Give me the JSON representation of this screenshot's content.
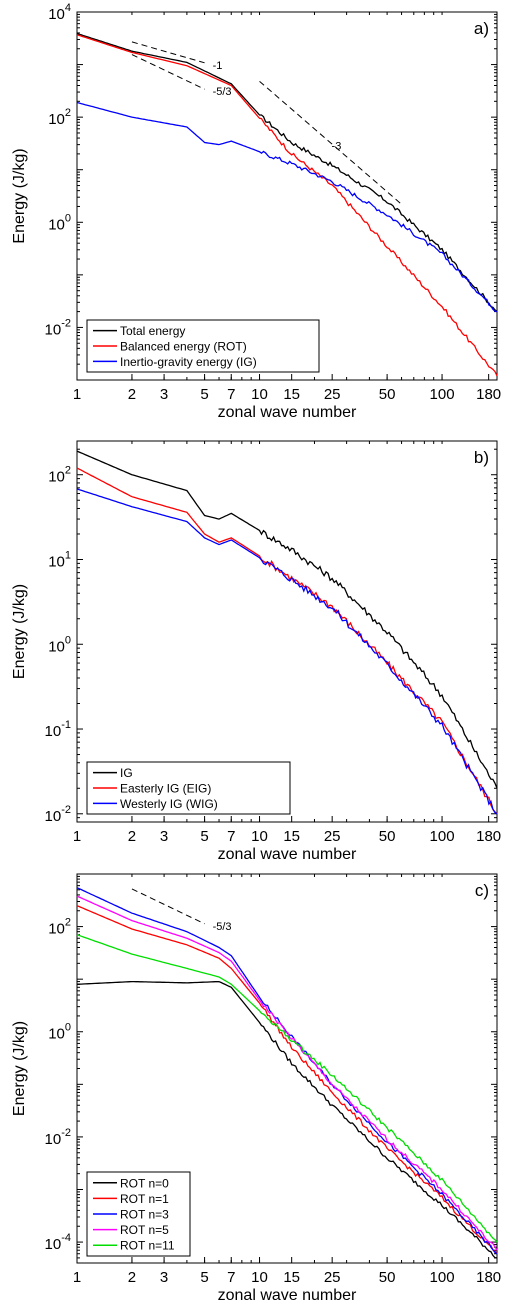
{
  "chart_data": [
    {
      "type": "line",
      "panel_label": "a)",
      "xlabel": "zonal wave number",
      "ylabel": "Energy (J/kg)",
      "xscale": "log",
      "yscale": "log",
      "xlim": [
        1,
        200
      ],
      "ylim": [
        0.001,
        10000
      ],
      "xticks": [
        1,
        2,
        3,
        5,
        7,
        10,
        15,
        25,
        50,
        100,
        180
      ],
      "xtick_labels": [
        "1",
        "2",
        "3",
        "5",
        "7",
        "10",
        "15",
        "25",
        "50",
        "100",
        "180"
      ],
      "ytick_labels": [
        {
          "value": 10000,
          "base": "10",
          "exp": "4"
        },
        {
          "value": 100,
          "base": "10",
          "exp": "2"
        },
        {
          "value": 1,
          "base": "10",
          "exp": "0"
        },
        {
          "value": 0.01,
          "base": "10",
          "exp": "-2"
        }
      ],
      "legend_position": "bottom-left",
      "series": [
        {
          "name": "Total energy",
          "color": "#000000",
          "x": [
            1,
            2,
            4,
            7,
            10,
            15,
            25,
            50,
            100,
            200
          ],
          "y": [
            3900,
            1800,
            1100,
            430,
            110,
            33,
            12,
            2.5,
            0.3,
            0.02
          ]
        },
        {
          "name": "Balanced energy (ROT)",
          "color": "#ff0000",
          "x": [
            1,
            2,
            4,
            7,
            10,
            15,
            25,
            50,
            100,
            200
          ],
          "y": [
            3700,
            1700,
            950,
            400,
            95,
            20,
            5,
            0.35,
            0.025,
            0.0012
          ]
        },
        {
          "name": "Inertio-gravity energy (IG)",
          "color": "#0000ff",
          "x": [
            1,
            2,
            4,
            5,
            6,
            7,
            10,
            15,
            25,
            50,
            100,
            200
          ],
          "y": [
            190,
            100,
            65,
            33,
            30,
            35,
            22,
            13,
            6,
            1.4,
            0.25,
            0.02
          ]
        }
      ],
      "reference_slopes": [
        {
          "label": "-1",
          "x": [
            2,
            5
          ],
          "y": [
            2700,
            1080
          ]
        },
        {
          "label": "-5/3",
          "x": [
            2,
            5
          ],
          "y": [
            1550,
            340
          ]
        },
        {
          "label": "-3",
          "x": [
            10,
            60
          ],
          "y": [
            480,
            2.2
          ]
        }
      ]
    },
    {
      "type": "line",
      "panel_label": "b)",
      "xlabel": "zonal wave number",
      "ylabel": "Energy (J/kg)",
      "xscale": "log",
      "yscale": "log",
      "xlim": [
        1,
        200
      ],
      "ylim": [
        0.008,
        250
      ],
      "xticks": [
        1,
        2,
        3,
        5,
        7,
        10,
        15,
        25,
        50,
        100,
        180
      ],
      "xtick_labels": [
        "1",
        "2",
        "3",
        "5",
        "7",
        "10",
        "15",
        "25",
        "50",
        "100",
        "180"
      ],
      "ytick_labels": [
        {
          "value": 100,
          "base": "10",
          "exp": "2"
        },
        {
          "value": 10,
          "base": "10",
          "exp": "1"
        },
        {
          "value": 1,
          "base": "10",
          "exp": "0"
        },
        {
          "value": 0.1,
          "base": "10",
          "exp": "-1"
        },
        {
          "value": 0.01,
          "base": "10",
          "exp": "-2"
        }
      ],
      "legend_position": "bottom-left",
      "series": [
        {
          "name": "IG",
          "color": "#000000",
          "x": [
            1,
            2,
            4,
            5,
            6,
            7,
            10,
            15,
            25,
            50,
            100,
            200
          ],
          "y": [
            190,
            100,
            65,
            33,
            30,
            35,
            22,
            13,
            6,
            1.4,
            0.25,
            0.02
          ]
        },
        {
          "name": "Easterly IG (EIG)",
          "color": "#ff0000",
          "x": [
            1,
            2,
            4,
            5,
            6,
            7,
            10,
            15,
            25,
            50,
            100,
            200
          ],
          "y": [
            120,
            55,
            36,
            20,
            16,
            18,
            11,
            6,
            2.8,
            0.6,
            0.12,
            0.01
          ]
        },
        {
          "name": "Westerly IG (WIG)",
          "color": "#0000ff",
          "x": [
            1,
            2,
            4,
            5,
            6,
            7,
            10,
            15,
            25,
            50,
            100,
            200
          ],
          "y": [
            68,
            42,
            28,
            18,
            15,
            17,
            10.5,
            5.8,
            2.7,
            0.58,
            0.11,
            0.01
          ]
        }
      ]
    },
    {
      "type": "line",
      "panel_label": "c)",
      "xlabel": "zonal wave number",
      "ylabel": "Energy (J/kg)",
      "xscale": "log",
      "yscale": "log",
      "xlim": [
        1,
        200
      ],
      "ylim": [
        4e-05,
        1000
      ],
      "xticks": [
        1,
        2,
        3,
        5,
        7,
        10,
        15,
        25,
        50,
        100,
        180
      ],
      "xtick_labels": [
        "1",
        "2",
        "3",
        "5",
        "7",
        "10",
        "15",
        "25",
        "50",
        "100",
        "180"
      ],
      "ytick_labels": [
        {
          "value": 100,
          "base": "10",
          "exp": "2"
        },
        {
          "value": 1,
          "base": "10",
          "exp": "0"
        },
        {
          "value": 0.01,
          "base": "10",
          "exp": "-2"
        },
        {
          "value": 0.0001,
          "base": "10",
          "exp": "-4"
        }
      ],
      "legend_position": "bottom-left",
      "series": [
        {
          "name": "ROT n=0",
          "color": "#000000",
          "x": [
            1,
            2,
            4,
            6,
            7,
            10,
            15,
            25,
            50,
            100,
            200
          ],
          "y": [
            8,
            9,
            8.5,
            9,
            7,
            1.5,
            0.25,
            0.04,
            0.004,
            0.0005,
            5e-05
          ]
        },
        {
          "name": "ROT n=1",
          "color": "#ff0000",
          "x": [
            1,
            2,
            4,
            6,
            7,
            10,
            15,
            25,
            50,
            100,
            200
          ],
          "y": [
            250,
            90,
            45,
            25,
            16,
            3.5,
            0.5,
            0.07,
            0.006,
            0.0007,
            6e-05
          ]
        },
        {
          "name": "ROT n=3",
          "color": "#0000ff",
          "x": [
            1,
            2,
            4,
            6,
            7,
            10,
            15,
            25,
            50,
            100,
            200
          ],
          "y": [
            550,
            180,
            80,
            40,
            28,
            4.5,
            0.8,
            0.1,
            0.008,
            0.0008,
            6e-05
          ]
        },
        {
          "name": "ROT n=5",
          "color": "#ff00ff",
          "x": [
            1,
            2,
            4,
            6,
            7,
            10,
            15,
            25,
            50,
            100,
            200
          ],
          "y": [
            380,
            130,
            60,
            32,
            22,
            4,
            0.75,
            0.1,
            0.009,
            0.001,
            7e-05
          ]
        },
        {
          "name": "ROT n=11",
          "color": "#00dd00",
          "x": [
            1,
            2,
            4,
            6,
            7,
            10,
            15,
            25,
            50,
            100,
            200
          ],
          "y": [
            70,
            30,
            16,
            11,
            8,
            2.5,
            0.7,
            0.15,
            0.015,
            0.0015,
            0.0001
          ]
        }
      ],
      "reference_slopes": [
        {
          "label": "-5/3",
          "x": [
            2,
            5
          ],
          "y": [
            520,
            113
          ]
        }
      ]
    }
  ]
}
